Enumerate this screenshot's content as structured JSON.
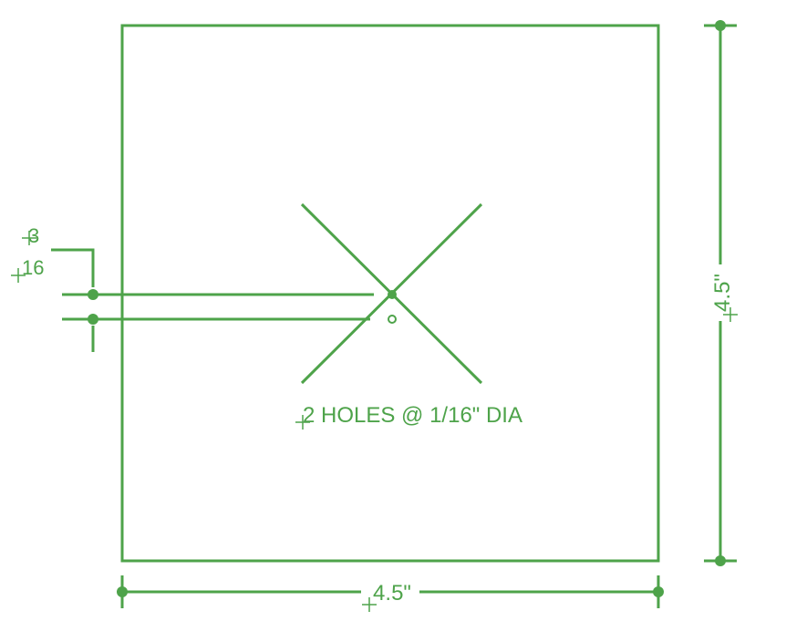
{
  "drawing": {
    "color": "#4ea34a",
    "width_dim": "4.5\"",
    "height_dim": "4.5\"",
    "note": "2 HOLES @ 1/16\" DIA",
    "offset_dim": {
      "numerator": "3",
      "denominator": "16"
    }
  }
}
